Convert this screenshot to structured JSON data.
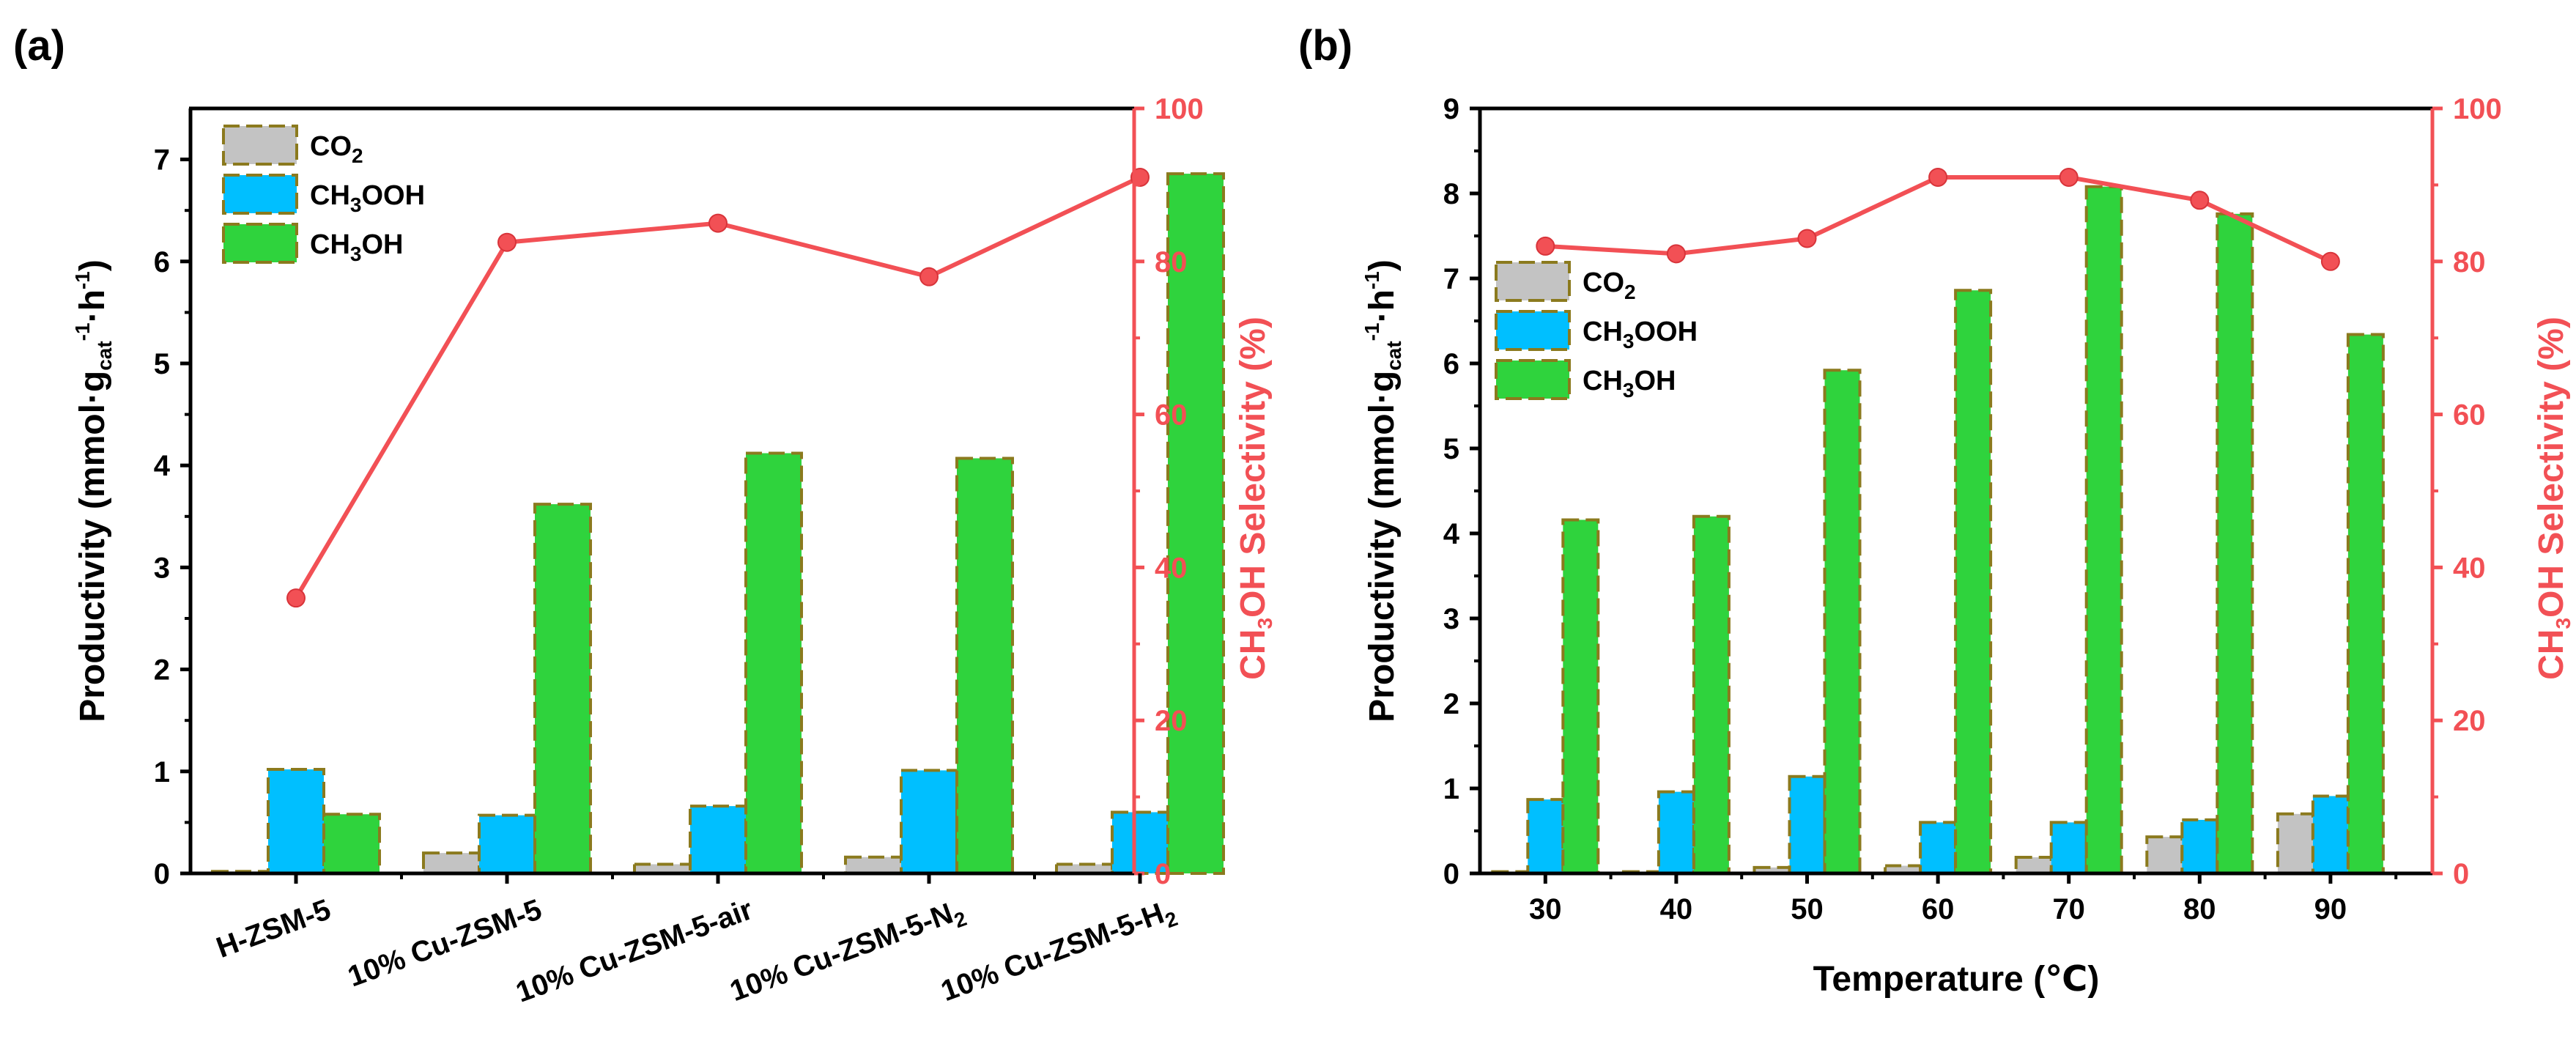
{
  "colors": {
    "co2": "#c3c3c3",
    "ch3ooh": "#00bfff",
    "ch3oh": "#2fd33d",
    "bar_border": "#8b7a1e",
    "selectivity": "#f25055",
    "axis": "#000000"
  },
  "chart_data": [
    {
      "type": "bar",
      "panel_label": "(a)",
      "categories": [
        {
          "main": "H-ZSM-5",
          "sub": ""
        },
        {
          "main": "10% Cu-ZSM-5",
          "sub": ""
        },
        {
          "main": "10% Cu-ZSM-5-air",
          "sub": ""
        },
        {
          "main": "10% Cu-ZSM-5-N",
          "sub": "2"
        },
        {
          "main": "10% Cu-ZSM-5-H",
          "sub": "2"
        }
      ],
      "xlabel": "",
      "ylabel": {
        "main": "Productivity (mmol·g",
        "sub": "cat",
        "sup1": "-1",
        "mid": "·h",
        "sup2": "-1",
        "end": ")"
      },
      "y2label": {
        "pre": "CH",
        "sub": "3",
        "post": "OH Selectivity (%)"
      },
      "ylim": [
        0,
        7.5
      ],
      "y2lim": [
        0,
        100
      ],
      "yticks": [
        0,
        1,
        2,
        3,
        4,
        5,
        6,
        7
      ],
      "y2ticks": [
        0,
        20,
        40,
        60,
        80,
        100
      ],
      "legend_position": "top-left",
      "series": [
        {
          "key": "co2",
          "name": {
            "pre": "CO",
            "sub": "2",
            "post": ""
          },
          "values": [
            0.02,
            0.2,
            0.09,
            0.16,
            0.09
          ]
        },
        {
          "key": "ch3ooh",
          "name": {
            "pre": "CH",
            "sub": "3",
            "post": "OOH"
          },
          "values": [
            1.02,
            0.57,
            0.66,
            1.01,
            0.6
          ]
        },
        {
          "key": "ch3oh",
          "name": {
            "pre": "CH",
            "sub": "3",
            "post": "OH"
          },
          "values": [
            0.58,
            3.62,
            4.12,
            4.07,
            6.86
          ]
        }
      ],
      "selectivity": {
        "axis": "right",
        "values": [
          36,
          82.5,
          85,
          78,
          91
        ]
      }
    },
    {
      "type": "bar",
      "panel_label": "(b)",
      "categories": [
        {
          "main": "30",
          "sub": ""
        },
        {
          "main": "40",
          "sub": ""
        },
        {
          "main": "50",
          "sub": ""
        },
        {
          "main": "60",
          "sub": ""
        },
        {
          "main": "70",
          "sub": ""
        },
        {
          "main": "80",
          "sub": ""
        },
        {
          "main": "90",
          "sub": ""
        }
      ],
      "xlabel": "Temperature (℃)",
      "ylabel": {
        "main": "Productivity (mmol·g",
        "sub": "cat",
        "sup1": "-1",
        "mid": "·h",
        "sup2": "-1",
        "end": ")"
      },
      "y2label": {
        "pre": "CH",
        "sub": "3",
        "post": "OH Selectivity (%)"
      },
      "ylim": [
        0,
        9
      ],
      "y2lim": [
        0,
        100
      ],
      "yticks": [
        0,
        1,
        2,
        3,
        4,
        5,
        6,
        7,
        8,
        9
      ],
      "y2ticks": [
        0,
        20,
        40,
        60,
        80,
        100
      ],
      "legend_position": "center-left",
      "series": [
        {
          "key": "co2",
          "name": {
            "pre": "CO",
            "sub": "2",
            "post": ""
          },
          "values": [
            0.02,
            0.02,
            0.07,
            0.09,
            0.19,
            0.43,
            0.7
          ]
        },
        {
          "key": "ch3ooh",
          "name": {
            "pre": "CH",
            "sub": "3",
            "post": "OOH"
          },
          "values": [
            0.87,
            0.96,
            1.14,
            0.6,
            0.6,
            0.63,
            0.91
          ]
        },
        {
          "key": "ch3oh",
          "name": {
            "pre": "CH",
            "sub": "3",
            "post": "OH"
          },
          "values": [
            4.16,
            4.2,
            5.92,
            6.86,
            8.08,
            7.76,
            6.34
          ]
        }
      ],
      "selectivity": {
        "axis": "right",
        "values": [
          82,
          81,
          83,
          91,
          91,
          88,
          80
        ]
      }
    }
  ]
}
